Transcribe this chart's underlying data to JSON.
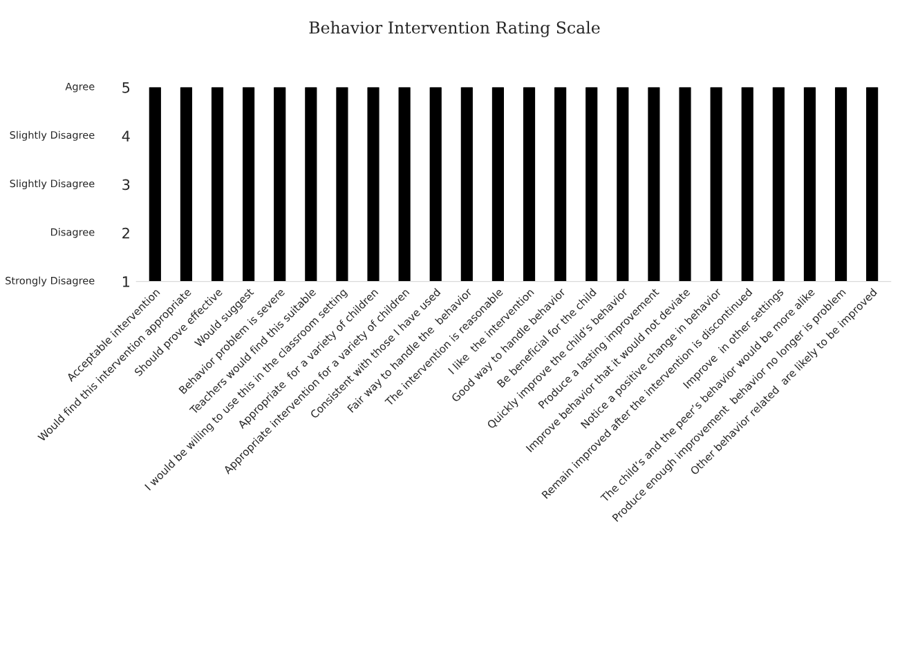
{
  "chart_data": {
    "type": "bar",
    "title": "Behavior Intervention Rating Scale",
    "categories": [
      "Acceptable intervention",
      "Would find this intervention appropriate",
      "Should prove effective",
      "Would suggest",
      "Behavior problem is severe",
      "Teachers would find this suitable",
      "I would be willing to use this in the classroom setting",
      "Appropriate  for a variety of children",
      "Appropriate intervention for a variety of children",
      "Consistent with those I have used",
      "Fair way to handle the  behavior",
      "The intervention is reasonable",
      "I like  the intervention",
      "Good way to handle behavior",
      "Be beneficial for the child",
      "Quickly improve the child’s behavior",
      "Produce a lasting improvement",
      "Improve behavior that it would not deviate",
      "Notice a positive change in behavior",
      "Remain improved after the intervention is discontinued",
      "Improve  in other settings",
      "The child’s and the peer’s behavior would be more alike",
      "Produce enough improvement  behavior no longer is problem",
      "Other behavior related  are likely to be improved"
    ],
    "values": [
      5,
      5,
      5,
      5,
      5,
      5,
      5,
      5,
      5,
      5,
      5,
      5,
      5,
      5,
      5,
      5,
      5,
      5,
      5,
      5,
      5,
      5,
      5,
      5
    ],
    "color": "#000000",
    "ylim": [
      1,
      5
    ],
    "yticks": [
      1,
      2,
      3,
      4,
      5
    ],
    "annotations": [
      "Strongly Disagree",
      "Disagree",
      "Slightly Disagree",
      "Slightly Disagree",
      "Agree"
    ],
    "grid": false,
    "legend": false
  }
}
